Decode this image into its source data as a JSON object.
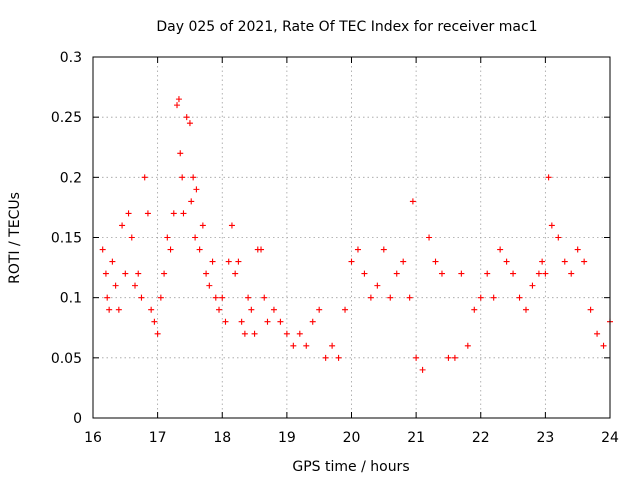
{
  "chart_data": {
    "type": "scatter",
    "title": "Day 025 of 2021, Rate Of TEC Index for receiver mac1",
    "xlabel": "GPS time / hours",
    "ylabel": "ROTI / TECUs",
    "xlim": [
      16,
      24
    ],
    "ylim": [
      0,
      0.3
    ],
    "xticks": [
      16,
      17,
      18,
      19,
      20,
      21,
      22,
      23,
      24
    ],
    "xtick_labels": [
      "16",
      "17",
      "18",
      "19",
      "20",
      "21",
      "22",
      "23",
      "24"
    ],
    "yticks": [
      0,
      0.05,
      0.1,
      0.15,
      0.2,
      0.25,
      0.3
    ],
    "ytick_labels": [
      "0",
      "0.05",
      "0.1",
      "0.15",
      "0.2",
      "0.25",
      "0.3"
    ],
    "grid": true,
    "marker": "plus",
    "color": "#ff0000",
    "series": [
      {
        "name": "ROTI",
        "x": [
          16.15,
          16.2,
          16.22,
          16.25,
          16.3,
          16.35,
          16.4,
          16.45,
          16.5,
          16.55,
          16.6,
          16.65,
          16.7,
          16.75,
          16.8,
          16.85,
          16.9,
          16.95,
          17.0,
          17.05,
          17.1,
          17.15,
          17.2,
          17.25,
          17.3,
          17.33,
          17.35,
          17.38,
          17.4,
          17.45,
          17.5,
          17.52,
          17.55,
          17.58,
          17.6,
          17.65,
          17.7,
          17.75,
          17.8,
          17.85,
          17.9,
          17.95,
          18.0,
          18.05,
          18.1,
          18.15,
          18.2,
          18.25,
          18.3,
          18.35,
          18.4,
          18.45,
          18.5,
          18.55,
          18.6,
          18.65,
          18.7,
          18.8,
          18.9,
          19.0,
          19.1,
          19.2,
          19.3,
          19.4,
          19.5,
          19.6,
          19.7,
          19.8,
          19.9,
          20.0,
          20.1,
          20.2,
          20.3,
          20.4,
          20.5,
          20.6,
          20.7,
          20.8,
          20.9,
          20.95,
          21.0,
          21.1,
          21.2,
          21.3,
          21.4,
          21.5,
          21.6,
          21.7,
          21.8,
          21.9,
          22.0,
          22.1,
          22.2,
          22.3,
          22.4,
          22.5,
          22.6,
          22.7,
          22.8,
          22.9,
          22.95,
          23.0,
          23.05,
          23.1,
          23.2,
          23.3,
          23.4,
          23.5,
          23.6,
          23.7,
          23.8,
          23.9,
          24.0
        ],
        "y": [
          0.14,
          0.12,
          0.1,
          0.09,
          0.13,
          0.11,
          0.09,
          0.16,
          0.12,
          0.17,
          0.15,
          0.11,
          0.12,
          0.1,
          0.2,
          0.17,
          0.09,
          0.08,
          0.07,
          0.1,
          0.12,
          0.15,
          0.14,
          0.17,
          0.26,
          0.265,
          0.22,
          0.2,
          0.17,
          0.25,
          0.245,
          0.18,
          0.2,
          0.15,
          0.19,
          0.14,
          0.16,
          0.12,
          0.11,
          0.13,
          0.1,
          0.09,
          0.1,
          0.08,
          0.13,
          0.16,
          0.12,
          0.13,
          0.08,
          0.07,
          0.1,
          0.09,
          0.07,
          0.14,
          0.14,
          0.1,
          0.08,
          0.09,
          0.08,
          0.07,
          0.06,
          0.07,
          0.06,
          0.08,
          0.09,
          0.05,
          0.06,
          0.05,
          0.09,
          0.13,
          0.14,
          0.12,
          0.1,
          0.11,
          0.14,
          0.1,
          0.12,
          0.13,
          0.1,
          0.18,
          0.05,
          0.04,
          0.15,
          0.13,
          0.12,
          0.05,
          0.05,
          0.12,
          0.06,
          0.09,
          0.1,
          0.12,
          0.1,
          0.14,
          0.13,
          0.12,
          0.1,
          0.09,
          0.11,
          0.12,
          0.13,
          0.12,
          0.2,
          0.16,
          0.15,
          0.13,
          0.12,
          0.14,
          0.13,
          0.09,
          0.07,
          0.06,
          0.08
        ]
      }
    ]
  }
}
